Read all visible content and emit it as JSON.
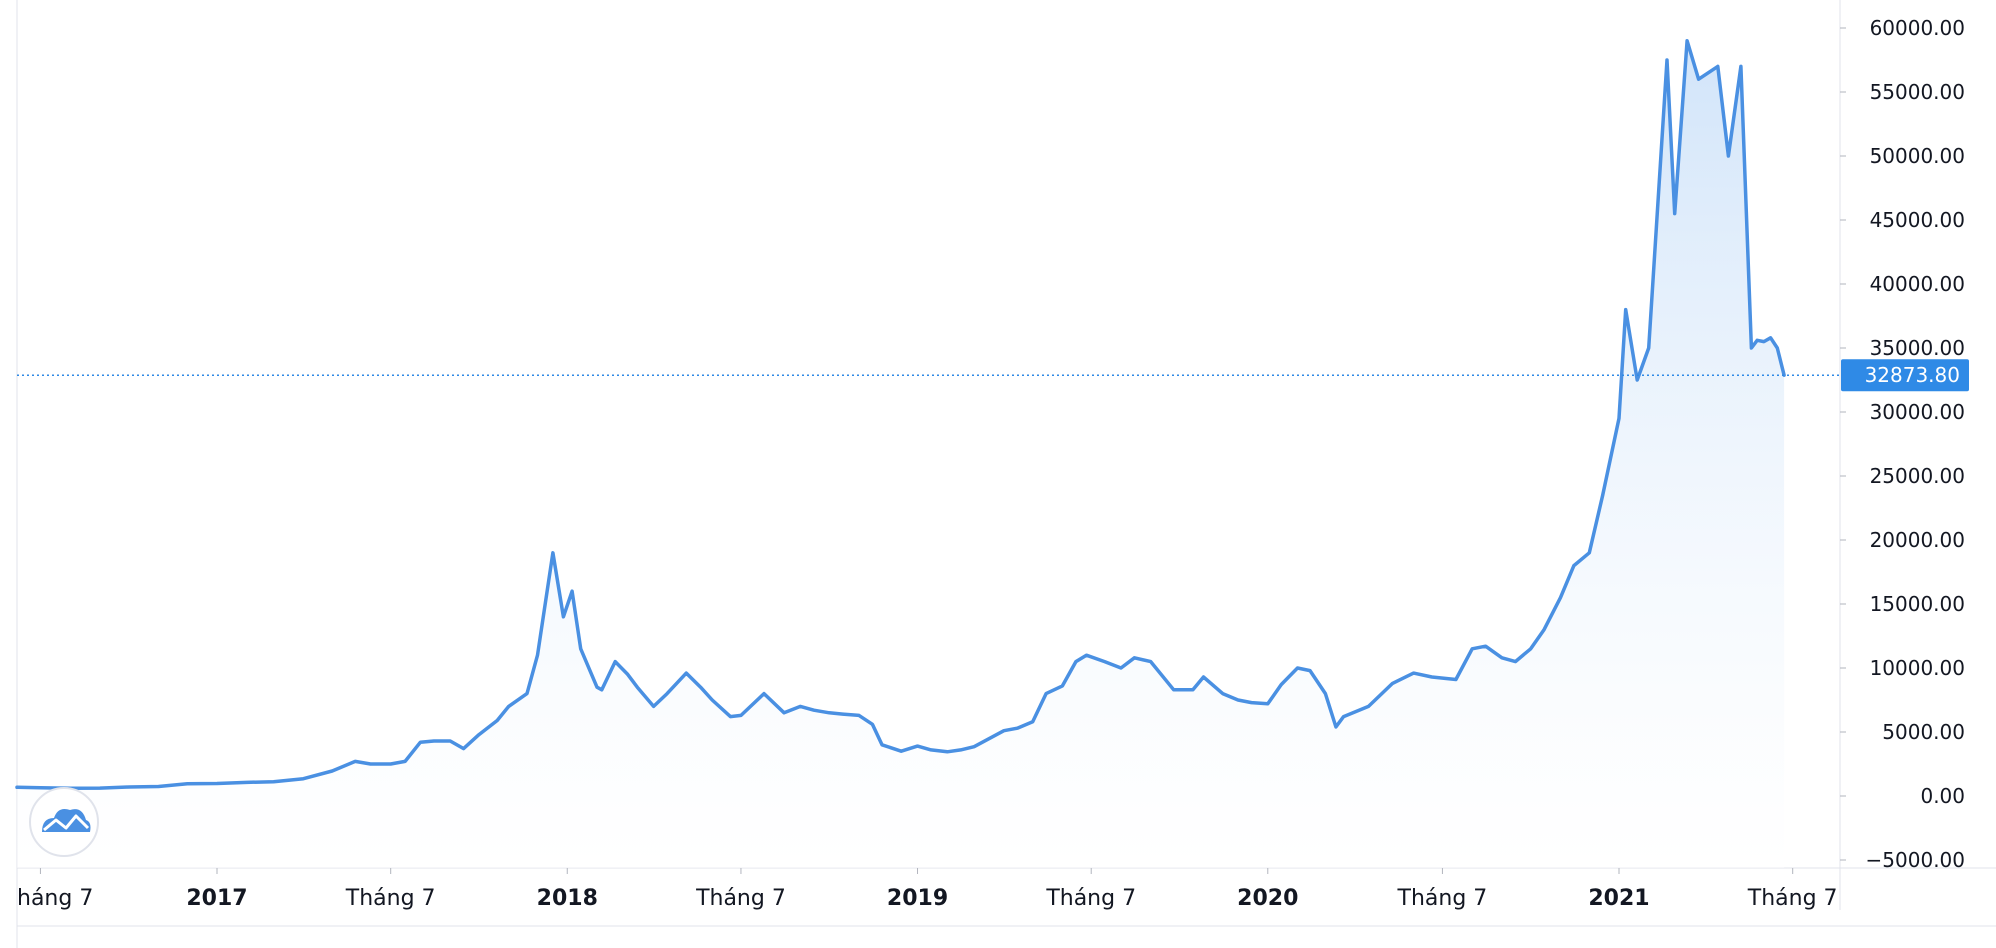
{
  "chart_data": {
    "type": "area",
    "title": "",
    "xlabel": "",
    "ylabel": "",
    "ylim": [
      -5000,
      60000
    ],
    "y_ticks": [
      "60000.00",
      "55000.00",
      "50000.00",
      "45000.00",
      "40000.00",
      "35000.00",
      "30000.00",
      "25000.00",
      "20000.00",
      "15000.00",
      "10000.00",
      "5000.00",
      "0.00",
      "−5000.00"
    ],
    "x_ticks": [
      {
        "label": "háng 7",
        "date": "2016-07-01",
        "bold": false
      },
      {
        "label": "2017",
        "date": "2017-01-01",
        "bold": true
      },
      {
        "label": "Tháng 7",
        "date": "2017-07-01",
        "bold": false
      },
      {
        "label": "2018",
        "date": "2018-01-01",
        "bold": true
      },
      {
        "label": "Tháng 7",
        "date": "2018-07-01",
        "bold": false
      },
      {
        "label": "2019",
        "date": "2019-01-01",
        "bold": true
      },
      {
        "label": "Tháng 7",
        "date": "2019-07-01",
        "bold": false
      },
      {
        "label": "2020",
        "date": "2020-01-01",
        "bold": true
      },
      {
        "label": "Tháng 7",
        "date": "2020-07-01",
        "bold": false
      },
      {
        "label": "2021",
        "date": "2021-01-01",
        "bold": true
      },
      {
        "label": "Tháng 7",
        "date": "2021-07-01",
        "bold": false
      }
    ],
    "last_value": 32873.8,
    "last_value_label": "32873.80",
    "colors": {
      "line": "#4a90e2",
      "fill_top": "#cfe3f9",
      "fill_bottom": "#ffffff",
      "axis_label_bg": "#2f8ae6",
      "grid": "#e0e3eb"
    },
    "series": [
      {
        "x": [
          "2016-06-01",
          "2016-07-01",
          "2016-08-01",
          "2016-09-01",
          "2016-10-01",
          "2016-11-01",
          "2016-12-01",
          "2017-01-01",
          "2017-02-01",
          "2017-03-01",
          "2017-04-01",
          "2017-05-01",
          "2017-05-25",
          "2017-06-10",
          "2017-07-01",
          "2017-07-16",
          "2017-08-01",
          "2017-08-15",
          "2017-09-01",
          "2017-09-15",
          "2017-10-01",
          "2017-10-20",
          "2017-11-01",
          "2017-11-20",
          "2017-12-01",
          "2017-12-17",
          "2017-12-28",
          "2018-01-06",
          "2018-01-15",
          "2018-02-01",
          "2018-02-06",
          "2018-02-20",
          "2018-03-05",
          "2018-03-15",
          "2018-04-01",
          "2018-04-15",
          "2018-05-05",
          "2018-05-20",
          "2018-06-01",
          "2018-06-20",
          "2018-07-01",
          "2018-07-25",
          "2018-08-15",
          "2018-09-01",
          "2018-09-15",
          "2018-10-01",
          "2018-10-15",
          "2018-11-01",
          "2018-11-15",
          "2018-11-25",
          "2018-12-15",
          "2019-01-01",
          "2019-01-15",
          "2019-02-01",
          "2019-02-15",
          "2019-03-01",
          "2019-04-01",
          "2019-04-15",
          "2019-05-01",
          "2019-05-15",
          "2019-06-01",
          "2019-06-15",
          "2019-06-26",
          "2019-07-15",
          "2019-08-01",
          "2019-08-15",
          "2019-09-01",
          "2019-09-25",
          "2019-10-15",
          "2019-10-26",
          "2019-11-15",
          "2019-12-01",
          "2019-12-15",
          "2020-01-01",
          "2020-01-15",
          "2020-02-01",
          "2020-02-14",
          "2020-03-01",
          "2020-03-12",
          "2020-03-20",
          "2020-04-15",
          "2020-05-10",
          "2020-06-01",
          "2020-06-20",
          "2020-07-15",
          "2020-08-01",
          "2020-08-15",
          "2020-09-01",
          "2020-09-15",
          "2020-10-01",
          "2020-10-15",
          "2020-11-01",
          "2020-11-15",
          "2020-12-01",
          "2020-12-15",
          "2021-01-01",
          "2021-01-08",
          "2021-01-20",
          "2021-02-01",
          "2021-02-20",
          "2021-02-28",
          "2021-03-13",
          "2021-03-25",
          "2021-04-14",
          "2021-04-25",
          "2021-05-08",
          "2021-05-19",
          "2021-05-25",
          "2021-06-01",
          "2021-06-08",
          "2021-06-15",
          "2021-06-22"
        ],
        "values": [
          680,
          650,
          600,
          620,
          700,
          740,
          960,
          980,
          1060,
          1120,
          1350,
          1950,
          2700,
          2500,
          2500,
          2700,
          4200,
          4300,
          4300,
          3700,
          4800,
          5900,
          7000,
          8000,
          11000,
          19000,
          14000,
          16000,
          11500,
          8500,
          8300,
          10500,
          9500,
          8500,
          7000,
          8000,
          9600,
          8500,
          7500,
          6200,
          6300,
          8000,
          6500,
          7000,
          6700,
          6500,
          6400,
          6300,
          5600,
          4000,
          3500,
          3900,
          3600,
          3450,
          3600,
          3850,
          5100,
          5300,
          5800,
          8000,
          8600,
          10500,
          11000,
          10500,
          10000,
          10800,
          10500,
          8300,
          8300,
          9300,
          8000,
          7500,
          7300,
          7200,
          8700,
          10000,
          9800,
          8000,
          5400,
          6200,
          7000,
          8800,
          9600,
          9300,
          9100,
          11500,
          11700,
          10800,
          10500,
          11500,
          13000,
          15500,
          18000,
          19000,
          23500,
          29500,
          38000,
          32500,
          35000,
          57500,
          45500,
          59000,
          56000,
          57000,
          50000,
          57000,
          35000,
          35600,
          35500,
          35800,
          35000,
          32873.8
        ]
      }
    ]
  }
}
